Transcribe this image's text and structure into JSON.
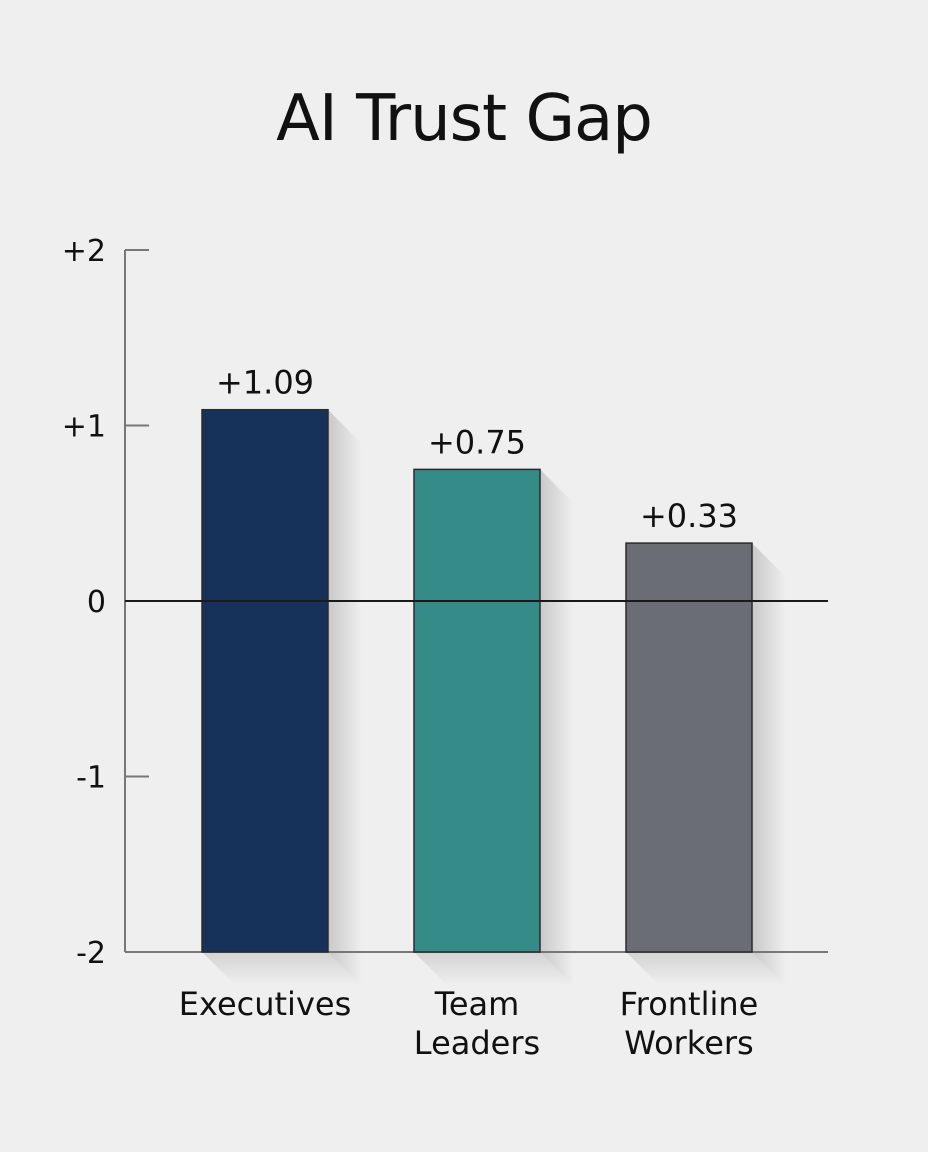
{
  "chart_data": {
    "type": "bar",
    "title": "AI Trust Gap",
    "xlabel": "",
    "ylabel": "",
    "ylim": [
      -2,
      2
    ],
    "yticks": [
      2,
      1,
      0,
      -1,
      -2
    ],
    "ytick_labels": [
      "+2",
      "+1",
      "0",
      "-1",
      "-2"
    ],
    "categories": [
      [
        "Executives"
      ],
      [
        "Team",
        "Leaders"
      ],
      [
        "Frontline",
        "Workers"
      ]
    ],
    "values": [
      1.09,
      0.75,
      0.33
    ],
    "data_labels": [
      "+1.09",
      "+0.75",
      "+0.33"
    ],
    "colors": [
      "#17325a",
      "#348b88",
      "#6a6d74"
    ],
    "grid": false,
    "legend": "none"
  }
}
